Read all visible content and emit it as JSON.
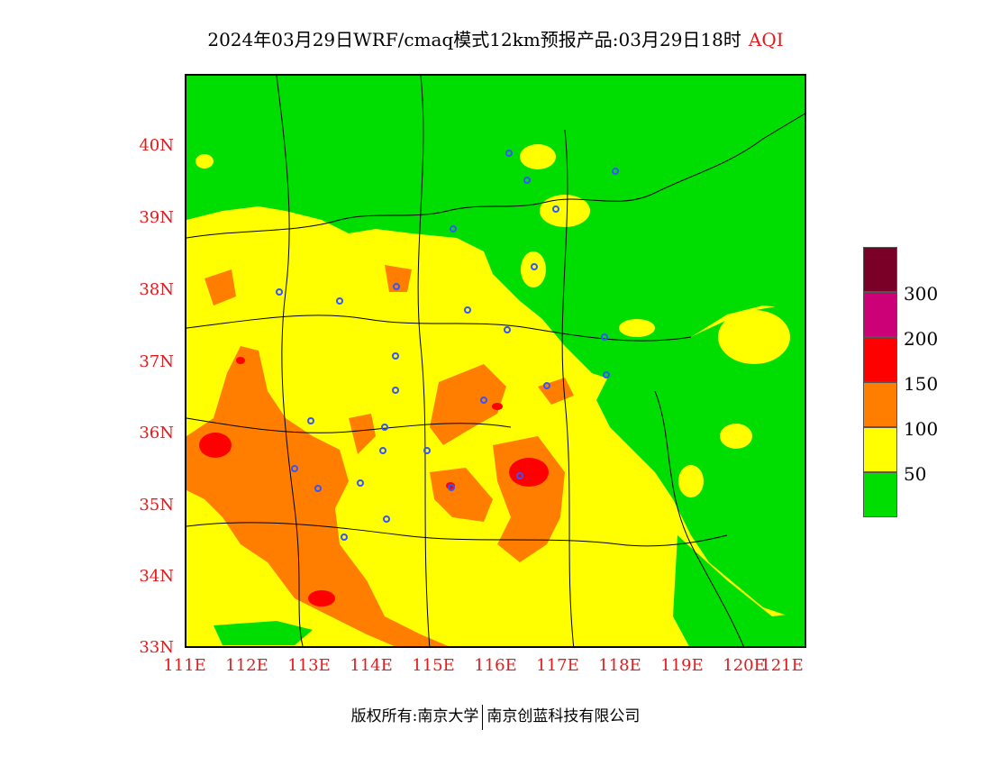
{
  "title": {
    "main": "2024年03月29日WRF/cmaq模式12km预报产品:03月29日18时",
    "product": "AQI"
  },
  "axes": {
    "lat_ticks": [
      "40N",
      "39N",
      "38N",
      "37N",
      "36N",
      "35N",
      "34N",
      "33N"
    ],
    "lon_ticks": [
      "111E",
      "112E",
      "113E",
      "114E",
      "115E",
      "116E",
      "117E",
      "118E",
      "119E",
      "120E",
      "121E"
    ]
  },
  "legend": {
    "colors": [
      "#00dd00",
      "#ffff00",
      "#ff7e00",
      "#ff0000",
      "#cc0077",
      "#7a0028"
    ],
    "labels": [
      "50",
      "100",
      "150",
      "200",
      "300"
    ]
  },
  "footer": {
    "copyright": "版权所有:南京大学",
    "company": "南京创蓝科技有限公司"
  },
  "colors": {
    "good": "#00dd00",
    "moderate": "#ffff00",
    "usg": "#ff7e00",
    "unhealthy": "#ff0000",
    "station_marker": "#3355ff",
    "tick_label": "#e41a1c"
  }
}
